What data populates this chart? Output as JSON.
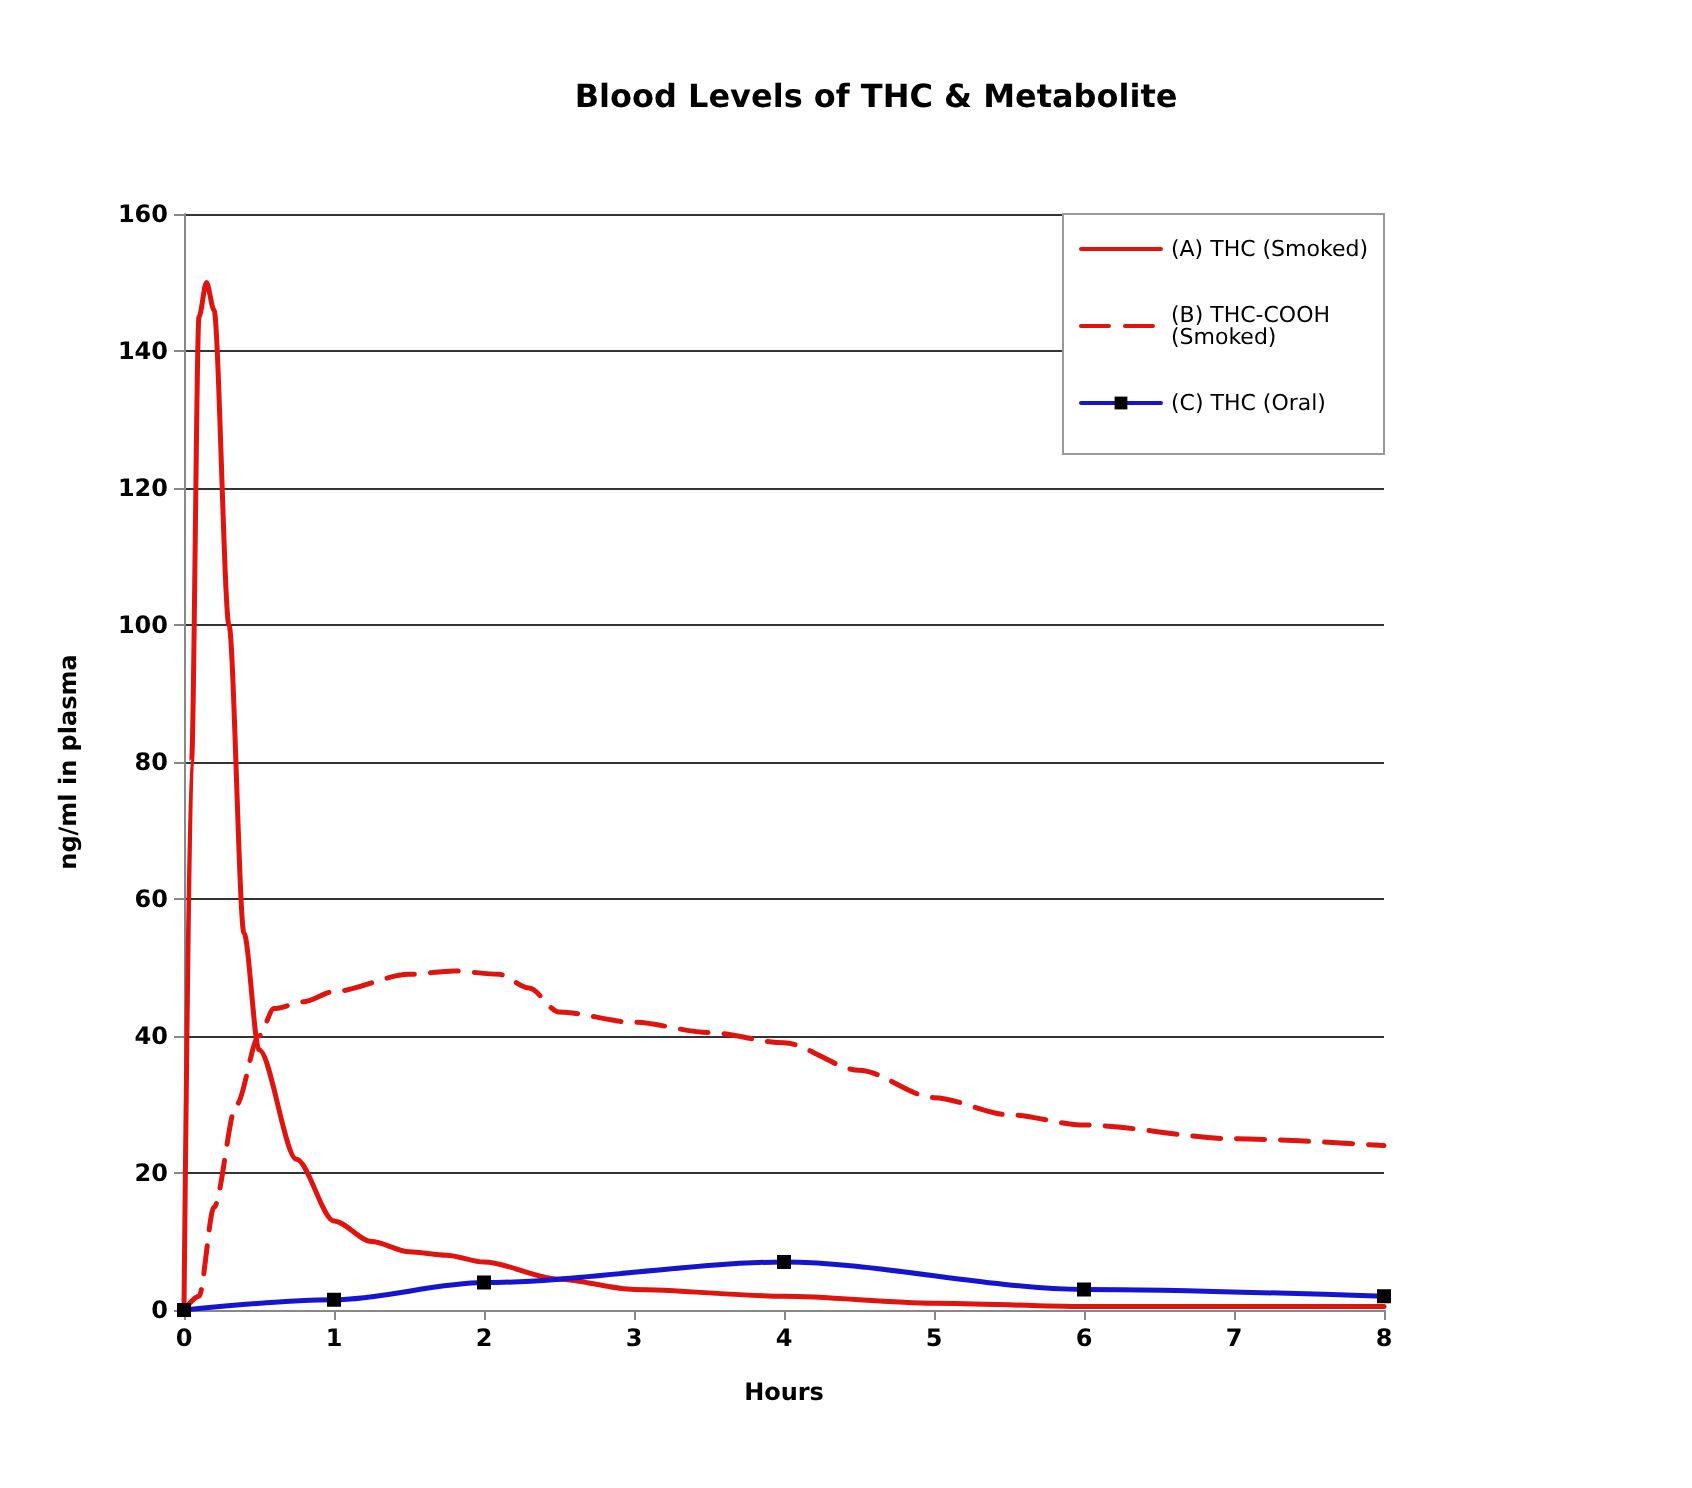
{
  "chart_data": {
    "type": "line",
    "title": "Blood Levels of THC & Metabolite",
    "xlabel": "Hours",
    "ylabel": "ng/ml in plasma",
    "xlim": [
      0,
      8
    ],
    "xticks": [
      0,
      1,
      2,
      3,
      4,
      5,
      6,
      7,
      8
    ],
    "ylim": [
      0,
      160
    ],
    "yticks": [
      0,
      20,
      40,
      60,
      80,
      100,
      120,
      140,
      160
    ],
    "grid": "y",
    "legend": "top right",
    "series": [
      {
        "name": "(A) THC (Smoked)",
        "color": "#e0140f",
        "line_style": "solid",
        "marker": "none",
        "x": [
          0,
          0.05,
          0.1,
          0.15,
          0.2,
          0.3,
          0.4,
          0.5,
          0.75,
          1,
          1.25,
          1.5,
          1.75,
          2,
          2.5,
          3,
          4,
          5,
          6,
          8
        ],
        "values": [
          0,
          80,
          145,
          150,
          146,
          100,
          55,
          38,
          22,
          13,
          10,
          8.5,
          8,
          7,
          4.5,
          3,
          2,
          1,
          0.5,
          0.5
        ]
      },
      {
        "name": "(B) THC-COOH (Smoked)",
        "color": "#e0140f",
        "line_style": "dashed",
        "marker": "none",
        "x": [
          0,
          0.1,
          0.2,
          0.35,
          0.5,
          0.6,
          0.8,
          1,
          1.5,
          1.8,
          2.1,
          2.3,
          2.5,
          3,
          3.5,
          4,
          4.5,
          5,
          5.5,
          6,
          7,
          8
        ],
        "values": [
          0,
          2,
          15,
          30,
          40,
          44,
          45,
          46.5,
          49,
          49.5,
          49,
          47,
          43.5,
          42,
          40.5,
          39,
          35,
          31,
          28.5,
          27,
          25,
          24
        ]
      },
      {
        "name": "(C) THC (Oral)",
        "color": "#1414d2",
        "line_style": "solid",
        "marker": "square",
        "x": [
          0,
          1,
          2,
          4,
          6,
          8
        ],
        "values": [
          0,
          1.5,
          4,
          7,
          3,
          2
        ]
      }
    ]
  }
}
